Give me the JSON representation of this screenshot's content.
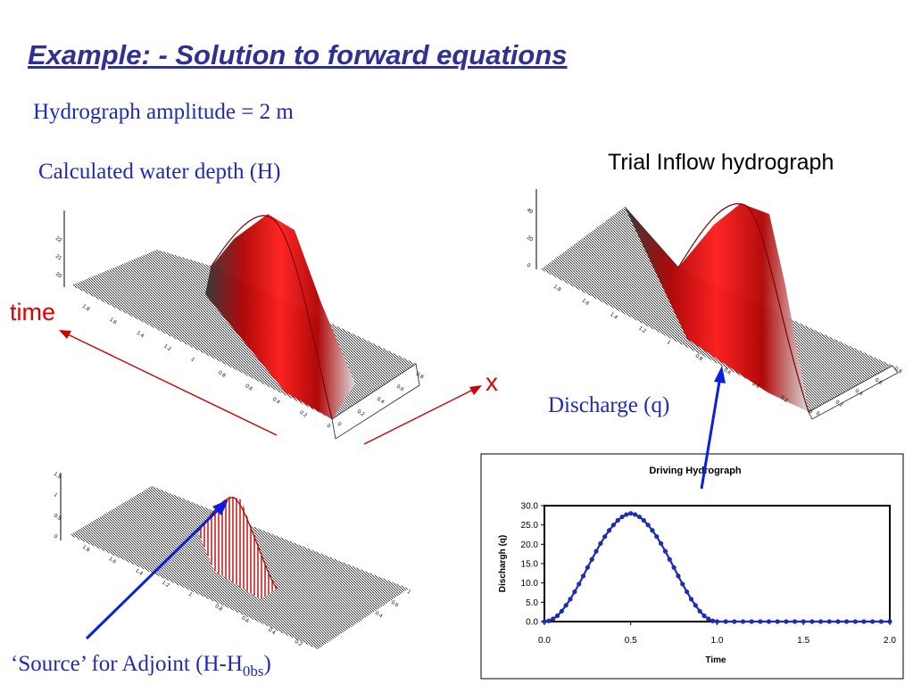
{
  "slide": {
    "title": "Example: - Solution to forward equations",
    "amplitude_text": "Hydrograph amplitude = 2 m",
    "depth_label": "Calculated water depth (H)",
    "trial_label": "Trial Inflow hydrograph",
    "discharge_label": "Discharge (q)",
    "source_label_main": "‘Source’ for Adjoint (H-H",
    "source_label_sub": "0bs",
    "source_label_end": ")",
    "time_axis_label": "time",
    "x_axis_label": "x"
  },
  "colors": {
    "title": "#2e3192",
    "text_blue": "#1f2bb5",
    "arrow_red": "#cc0000",
    "arrow_blue": "#0a1fe0",
    "surface_red": "#e00000",
    "series": "#1f2bb5"
  },
  "surface_plots": {
    "depth": {
      "time_ticks": [
        "1.8",
        "1.6",
        "1.4",
        "1.2",
        "1",
        "0.8",
        "0.6",
        "0.4",
        "0.2",
        "0"
      ],
      "x_ticks": [
        "0",
        "0.2",
        "0.4",
        "0.6",
        "0.8"
      ],
      "z_ticks": [
        "22",
        "21",
        "20"
      ]
    },
    "discharge": {
      "time_ticks": [
        "1.8",
        "1.6",
        "1.4",
        "1.2",
        "1",
        "0.8",
        "0.6",
        "0.4",
        "0.2",
        "0"
      ],
      "x_ticks": [
        "0",
        "0.2",
        "0.4",
        "0.6",
        "0.8"
      ],
      "z_ticks": [
        "40",
        "20",
        "0"
      ]
    },
    "source": {
      "time_ticks": [
        "1.8",
        "1.6",
        "1.4",
        "1.2",
        "1",
        "0.8",
        "0.6",
        "0.4",
        "0.2"
      ],
      "x_ticks": [
        "0.4",
        "0.6",
        "1"
      ],
      "z_ticks": [
        "1.5",
        "1",
        "0.5",
        "0"
      ]
    }
  },
  "chart_data": {
    "type": "line",
    "title": "Driving Hydrograph",
    "xlabel": "Time",
    "ylabel": "Dischargh (q)",
    "xlim": [
      0,
      2
    ],
    "ylim": [
      0,
      30
    ],
    "x_ticks": [
      "0.0",
      "0.5",
      "1.0",
      "1.5",
      "2.0"
    ],
    "y_ticks": [
      "0.0",
      "5.0",
      "10.0",
      "15.0",
      "20.0",
      "25.0",
      "30.0"
    ],
    "series": [
      {
        "x": [
          0,
          0.025,
          0.05,
          0.075,
          0.1,
          0.125,
          0.15,
          0.175,
          0.2,
          0.225,
          0.25,
          0.275,
          0.3,
          0.325,
          0.35,
          0.375,
          0.4,
          0.425,
          0.45,
          0.475,
          0.5,
          0.525,
          0.55,
          0.575,
          0.6,
          0.625,
          0.65,
          0.675,
          0.7,
          0.725,
          0.75,
          0.775,
          0.8,
          0.825,
          0.85,
          0.875,
          0.9,
          0.925,
          0.95,
          0.975,
          1.0,
          1.05,
          1.1,
          1.15,
          1.2,
          1.25,
          1.3,
          1.35,
          1.4,
          1.45,
          1.5,
          1.55,
          1.6,
          1.65,
          1.7,
          1.75,
          1.8,
          1.85,
          1.9,
          1.95,
          2.0
        ],
        "values": [
          0,
          0.17,
          0.7,
          1.5,
          2.7,
          4.2,
          5.8,
          7.7,
          9.7,
          11.8,
          14.0,
          16.1,
          18.2,
          20.2,
          22.0,
          23.6,
          25.0,
          26.2,
          27.1,
          27.7,
          28.0,
          27.7,
          27.1,
          26.2,
          25.0,
          23.6,
          22.0,
          20.2,
          18.2,
          16.1,
          14.0,
          11.8,
          9.7,
          7.7,
          5.8,
          4.2,
          2.7,
          1.5,
          0.7,
          0.17,
          0,
          0,
          0,
          0,
          0,
          0,
          0,
          0,
          0,
          0,
          0,
          0,
          0,
          0,
          0,
          0,
          0,
          0,
          0,
          0,
          0
        ]
      }
    ]
  }
}
